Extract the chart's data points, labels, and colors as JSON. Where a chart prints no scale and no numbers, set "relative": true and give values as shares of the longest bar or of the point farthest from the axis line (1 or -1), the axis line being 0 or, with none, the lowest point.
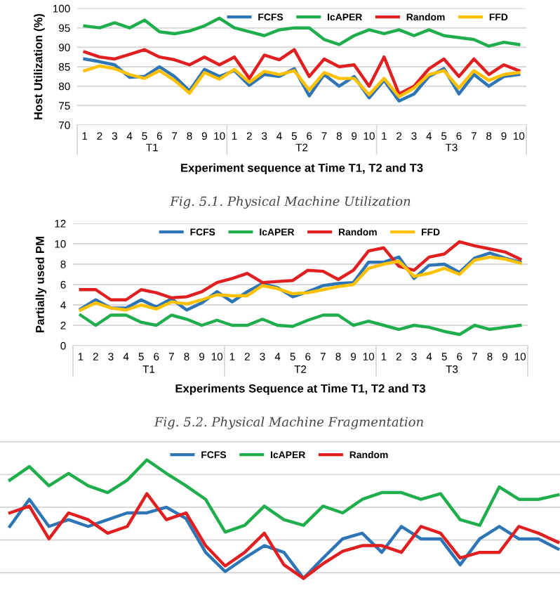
{
  "chart_data": [
    {
      "type": "line",
      "title": "Fig. 5.1. Physical Machine Utilization",
      "xlabel": "Experiment sequence at Time T1, T2 and T3",
      "ylabel": "Host Utilization (%)",
      "categories": [
        "1",
        "2",
        "3",
        "4",
        "5",
        "6",
        "7",
        "8",
        "9",
        "10",
        "1",
        "2",
        "3",
        "4",
        "5",
        "6",
        "7",
        "8",
        "9",
        "10",
        "1",
        "2",
        "3",
        "4",
        "5",
        "6",
        "7",
        "8",
        "9",
        "10"
      ],
      "series": [
        {
          "name": "FCFS",
          "color": "#2e75b6",
          "values": [
            87,
            86.3,
            85.5,
            82.3,
            82.5,
            85,
            82.5,
            78.8,
            84.3,
            82.5,
            84,
            80.2,
            83,
            82.5,
            84.5,
            77.5,
            83,
            80,
            82.5,
            77,
            81.5,
            76.2,
            78,
            82.5,
            84.5,
            78,
            83,
            80,
            82.5,
            83
          ]
        },
        {
          "name": "IcAPER",
          "color": "#1fae4b",
          "values": [
            95.5,
            95,
            96.3,
            95,
            97,
            94,
            93.5,
            94.2,
            95.5,
            97.5,
            95,
            94,
            93,
            94.5,
            95,
            95,
            92,
            90.7,
            93,
            94.5,
            93.5,
            94.5,
            93,
            94.5,
            93,
            92.5,
            92,
            90.3,
            91.3,
            90.7
          ]
        },
        {
          "name": "Random",
          "color": "#e02020",
          "values": [
            88.8,
            87.5,
            87,
            88.2,
            89.4,
            87.5,
            86.8,
            85.5,
            87.5,
            85.5,
            87.5,
            82,
            88,
            86.8,
            89.4,
            82.5,
            87,
            85,
            85.5,
            80,
            87.5,
            78,
            80,
            84.5,
            87,
            82.5,
            87,
            83,
            85.5,
            84
          ]
        },
        {
          "name": "FFD",
          "color": "#ffc000",
          "values": [
            84,
            85.2,
            84.5,
            83,
            82,
            84,
            81.5,
            78.2,
            83.5,
            81.8,
            84.3,
            81,
            83.8,
            83,
            84,
            79,
            83.5,
            82,
            82,
            77.8,
            82,
            77.3,
            79.5,
            83,
            84,
            79.5,
            84,
            81.5,
            83,
            83.5
          ]
        }
      ],
      "ylim": [
        70,
        100
      ],
      "yticks": [
        70,
        75,
        80,
        85,
        90,
        95,
        100
      ],
      "grid": "y",
      "legend": "top right",
      "annotations": [
        "T1",
        "T2",
        "T3"
      ]
    },
    {
      "type": "line",
      "title": "Fig. 5.2. Physical Machine Fragmentation",
      "xlabel": "Experiments Sequence at Time T1, T2 and T3",
      "ylabel": "Partially used PM",
      "categories": [
        "1",
        "2",
        "3",
        "4",
        "5",
        "6",
        "7",
        "8",
        "9",
        "10",
        "1",
        "2",
        "3",
        "4",
        "5",
        "6",
        "7",
        "8",
        "9",
        "10",
        "1",
        "2",
        "3",
        "4",
        "5",
        "6",
        "7",
        "8",
        "9",
        "10"
      ],
      "series": [
        {
          "name": "FCFS",
          "color": "#2e75b6",
          "values": [
            3.6,
            4.5,
            3.7,
            3.7,
            4.5,
            3.8,
            4.6,
            3.5,
            4.2,
            5.3,
            4.3,
            5.3,
            6.1,
            5.7,
            4.8,
            5.3,
            5.9,
            6.1,
            6.2,
            8.2,
            8.2,
            8.7,
            6.6,
            7.9,
            8,
            7.2,
            8.6,
            9.1,
            8.6,
            8.2
          ]
        },
        {
          "name": "IcAPER",
          "color": "#1fae4b",
          "values": [
            3,
            2,
            3,
            3,
            2.3,
            2,
            3,
            2.6,
            2,
            2.5,
            2,
            2,
            2.6,
            2,
            1.9,
            2.5,
            3,
            3,
            2,
            2.4,
            2,
            1.6,
            2,
            1.8,
            1.4,
            1.1,
            2,
            1.6,
            1.8,
            2
          ]
        },
        {
          "name": "Random",
          "color": "#e02020",
          "values": [
            5.5,
            5.5,
            4.5,
            4.5,
            5.5,
            5.2,
            4.7,
            4.8,
            5.3,
            6.2,
            6.6,
            7.1,
            6.2,
            6.3,
            6.4,
            7.4,
            7.3,
            6.5,
            7.4,
            9.3,
            9.6,
            7.8,
            7.4,
            8.7,
            9,
            10.2,
            9.8,
            9.5,
            9.2,
            8.5
          ]
        },
        {
          "name": "FFD",
          "color": "#ffc000",
          "values": [
            3.5,
            4.2,
            3.7,
            3.5,
            4,
            3.6,
            4.3,
            4.1,
            4.5,
            5,
            4.9,
            4.9,
            5.9,
            5.6,
            5.1,
            5.2,
            5.5,
            5.8,
            6,
            7.6,
            8,
            8.3,
            6.8,
            7.1,
            7.6,
            7,
            8.4,
            8.7,
            8.5,
            8.1
          ]
        }
      ],
      "ylim": [
        0,
        12
      ],
      "yticks": [
        0,
        2,
        4,
        6,
        8,
        10,
        12
      ],
      "grid": "y",
      "legend": "top",
      "annotations": [
        "T1",
        "T2",
        "T3"
      ]
    },
    {
      "type": "line",
      "relative": true,
      "categories": [
        null,
        null,
        null,
        null,
        null,
        null,
        null,
        null,
        null,
        null,
        null,
        null,
        null,
        null,
        null,
        null,
        null,
        null,
        null,
        null,
        null,
        null,
        null,
        null,
        null,
        null,
        null,
        null,
        null
      ],
      "series": [
        {
          "name": "FCFS",
          "color": "#2e75b6",
          "values": [
            0.41,
            0.65,
            0.41,
            0.47,
            0.41,
            0.47,
            0.53,
            0.53,
            0.58,
            0.48,
            0.18,
            0.01,
            0.13,
            0.24,
            0.18,
            -0.05,
            0.13,
            0.3,
            0.35,
            0.18,
            0.41,
            0.3,
            0.3,
            0.07,
            0.3,
            0.41,
            0.3,
            0.3,
            0.21
          ]
        },
        {
          "name": "IcAPER",
          "color": "#1fae4b",
          "values": [
            0.82,
            0.94,
            0.77,
            0.88,
            0.77,
            0.71,
            0.82,
            1.0,
            0.88,
            0.77,
            0.65,
            0.36,
            0.42,
            0.59,
            0.47,
            0.42,
            0.59,
            0.53,
            0.65,
            0.71,
            0.71,
            0.65,
            0.7,
            0.47,
            0.42,
            0.76,
            0.65,
            0.65,
            0.69
          ]
        },
        {
          "name": "Random",
          "color": "#e02020",
          "values": [
            0.53,
            0.59,
            0.3,
            0.53,
            0.47,
            0.35,
            0.41,
            0.7,
            0.47,
            0.53,
            0.24,
            0.06,
            0.18,
            0.35,
            0.07,
            -0.05,
            0.08,
            0.19,
            0.24,
            0.24,
            0.18,
            0.41,
            0.35,
            0.13,
            0.18,
            0.18,
            0.41,
            0.35,
            0.27
          ]
        }
      ],
      "grid": "y",
      "legend": "top"
    }
  ]
}
